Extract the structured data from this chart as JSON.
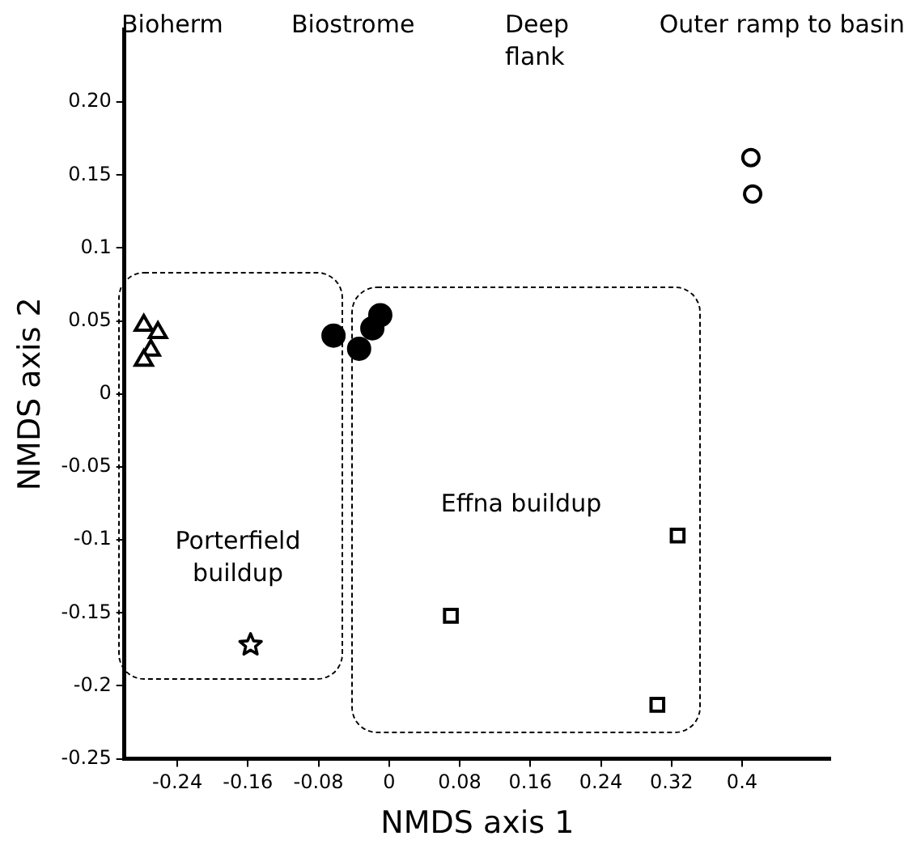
{
  "chart_data": {
    "type": "scatter",
    "xlabel": "NMDS axis 1",
    "ylabel": "NMDS axis 2",
    "series": [
      {
        "color": "#000000",
        "marker": "triangle",
        "x": [
          -0.278,
          -0.262,
          -0.27,
          -0.278
        ],
        "values": [
          0.047,
          0.042,
          0.03,
          0.023
        ]
      },
      {
        "color": "#000000",
        "x": [
          -0.063,
          -0.034,
          -0.019,
          -0.01
        ],
        "values": [
          0.04,
          0.031,
          0.045,
          0.054
        ]
      },
      {
        "color": "#000000",
        "marker": "square",
        "x": [
          0.07,
          0.327,
          0.304
        ],
        "values": [
          -0.152,
          -0.097,
          -0.213
        ]
      },
      {
        "color": "#000000",
        "marker": "circle",
        "x": [
          0.41,
          0.412
        ],
        "values": [
          0.162,
          0.137
        ]
      },
      {
        "color": "#000000",
        "marker": "star",
        "x": [
          -0.157
        ],
        "values": [
          -0.172
        ]
      }
    ],
    "annotations": [
      "Bioherm",
      "Biostrome",
      "Deep flank",
      "Outer ramp to basin",
      "Porterfield buildup",
      "Effna buildup"
    ],
    "xlim": [
      -0.3,
      0.5
    ],
    "xticks": [
      -0.24,
      -0.16,
      -0.08,
      0,
      0.08,
      0.16,
      0.24,
      0.32,
      0.4
    ],
    "ylim": [
      -0.25,
      0.25
    ],
    "yticks": [
      -0.25,
      -0.2,
      -0.15,
      -0.1,
      -0.05,
      0,
      0.05,
      0.1,
      0.15,
      {
        "value": 0.2,
        "label": "0.20"
      }
    ],
    "grid": false,
    "legend": false
  }
}
